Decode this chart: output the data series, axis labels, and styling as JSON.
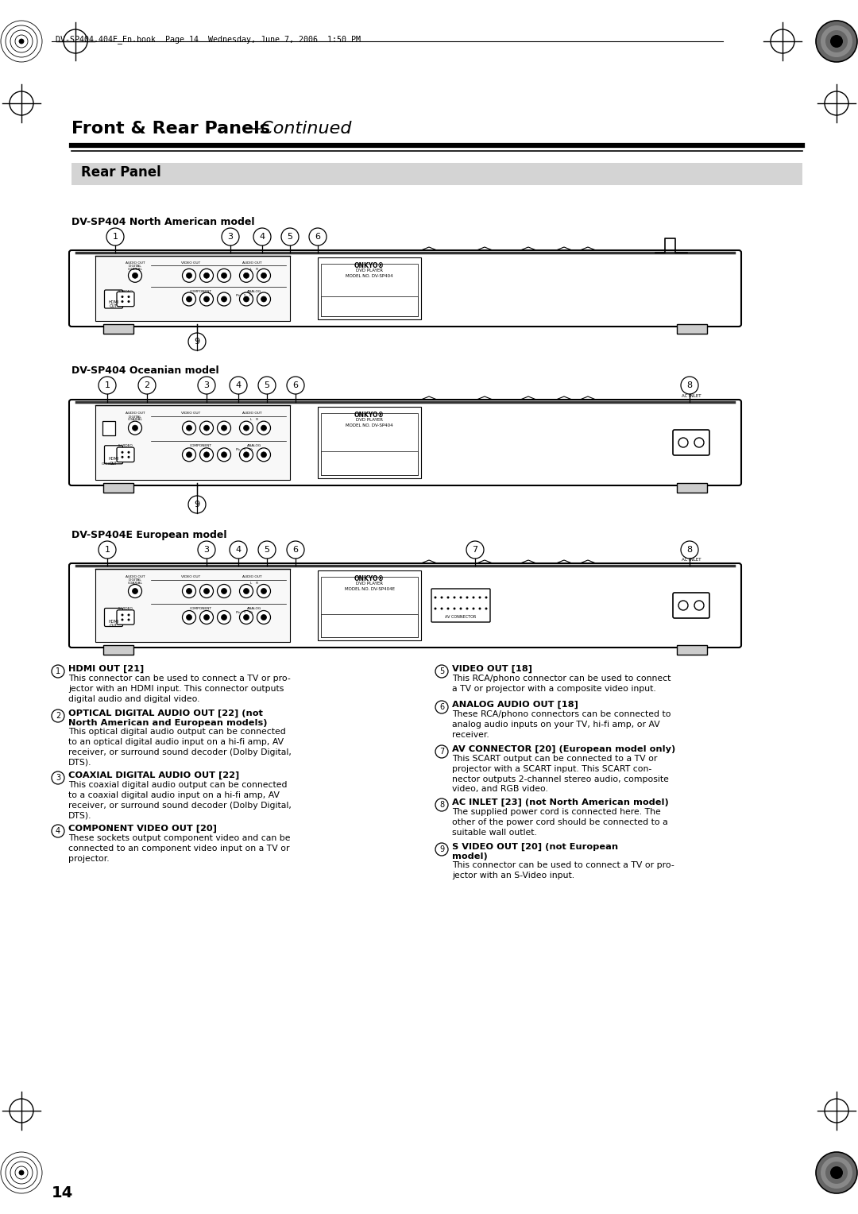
{
  "page_bg": "#ffffff",
  "header_text": "DV-SP404.404E_En.book  Page 14  Wednesday, June 7, 2006  1:50 PM",
  "title_bold": "Front & Rear Panels",
  "title_italic": "—Continued",
  "section_label": "Rear Panel",
  "section_bg": "#d4d4d4",
  "model_labels": [
    "DV-SP404 North American model",
    "DV-SP404 Oceanian model",
    "DV-SP404E European model"
  ],
  "descriptions": [
    {
      "num": "1",
      "bold": "HDMI OUT [21]",
      "text": "This connector can be used to connect a TV or pro-\njector with an HDMI input. This connector outputs\ndigital audio and digital video."
    },
    {
      "num": "2",
      "bold": "OPTICAL DIGITAL AUDIO OUT [22] (not\nNorth American and European models)",
      "text": "This optical digital audio output can be connected\nto an optical digital audio input on a hi-fi amp, AV\nreceiver, or surround sound decoder (Dolby Digital,\nDTS)."
    },
    {
      "num": "3",
      "bold": "COAXIAL DIGITAL AUDIO OUT [22]",
      "text": "This coaxial digital audio output can be connected\nto a coaxial digital audio input on a hi-fi amp, AV\nreceiver, or surround sound decoder (Dolby Digital,\nDTS)."
    },
    {
      "num": "4",
      "bold": "COMPONENT VIDEO OUT [20]",
      "text": "These sockets output component video and can be\nconnected to an component video input on a TV or\nprojector."
    },
    {
      "num": "5",
      "bold": "VIDEO OUT [18]",
      "text": "This RCA/phono connector can be used to connect\na TV or projector with a composite video input."
    },
    {
      "num": "6",
      "bold": "ANALOG AUDIO OUT [18]",
      "text": "These RCA/phono connectors can be connected to\nanalog audio inputs on your TV, hi-fi amp, or AV\nreceiver."
    },
    {
      "num": "7",
      "bold": "AV CONNECTOR [20] (European model only)",
      "text": "This SCART output can be connected to a TV or\nprojector with a SCART input. This SCART con-\nnector outputs 2-channel stereo audio, composite\nvideo, and RGB video."
    },
    {
      "num": "8",
      "bold": "AC INLET [23] (not North American model)",
      "text": "The supplied power cord is connected here. The\nother of the power cord should be connected to a\nsuitable wall outlet."
    },
    {
      "num": "9",
      "bold": "S VIDEO OUT [20] (not European\nmodel)",
      "text": "This connector can be used to connect a TV or pro-\njector with an S-Video input."
    }
  ],
  "page_number": "14"
}
